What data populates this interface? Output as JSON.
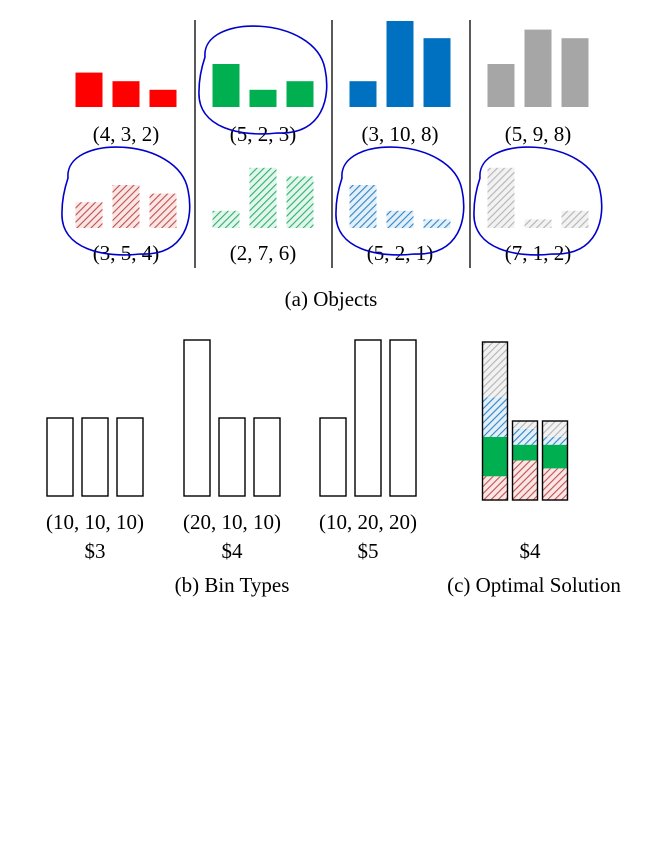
{
  "objects": {
    "caption": "(a) Objects",
    "items": [
      {
        "id": "red-solid",
        "dims": [
          4,
          3,
          2
        ],
        "label": "(4, 3, 2)",
        "color": "#ff0000",
        "pattern": "solid",
        "selected": false
      },
      {
        "id": "green-solid",
        "dims": [
          5,
          2,
          3
        ],
        "label": "(5, 2, 3)",
        "color": "#00b050",
        "pattern": "solid",
        "selected": true
      },
      {
        "id": "blue-solid",
        "dims": [
          3,
          10,
          8
        ],
        "label": "(3, 10, 8)",
        "color": "#0070c0",
        "pattern": "solid",
        "selected": false
      },
      {
        "id": "gray-solid",
        "dims": [
          5,
          9,
          8
        ],
        "label": "(5, 9, 8)",
        "color": "#a6a6a6",
        "pattern": "solid",
        "selected": false
      },
      {
        "id": "red-hatch",
        "dims": [
          3,
          5,
          4
        ],
        "label": "(3, 5, 4)",
        "color": "#c0504d",
        "pattern": "hatched",
        "selected": true
      },
      {
        "id": "green-hatch",
        "dims": [
          2,
          7,
          6
        ],
        "label": "(2, 7, 6)",
        "color": "#2eaf6e",
        "pattern": "hatched",
        "selected": false
      },
      {
        "id": "blue-hatch",
        "dims": [
          5,
          2,
          1
        ],
        "label": "(5, 2, 1)",
        "color": "#2e86c8",
        "pattern": "hatched",
        "selected": true
      },
      {
        "id": "gray-hatch",
        "dims": [
          7,
          1,
          2
        ],
        "label": "(7, 1, 2)",
        "color": "#b4b4b4",
        "pattern": "hatched",
        "selected": true
      }
    ]
  },
  "bin_types": {
    "caption": "(b) Bin Types",
    "items": [
      {
        "id": "bin-a",
        "dims": [
          10,
          10,
          10
        ],
        "label": "(10, 10, 10)",
        "cost": "$3"
      },
      {
        "id": "bin-b",
        "dims": [
          20,
          10,
          10
        ],
        "label": "(20, 10, 10)",
        "cost": "$4"
      },
      {
        "id": "bin-c",
        "dims": [
          10,
          20,
          20
        ],
        "label": "(10, 20, 20)",
        "cost": "$5"
      }
    ]
  },
  "solution": {
    "caption": "(c) Optimal Solution",
    "cost": "$4",
    "bin": "bin-b",
    "stack_order": [
      "red-hatch",
      "green-solid",
      "blue-hatch",
      "gray-hatch"
    ]
  },
  "colors": {
    "selection_outline": "#0000cc",
    "bin_outline": "#000000"
  }
}
